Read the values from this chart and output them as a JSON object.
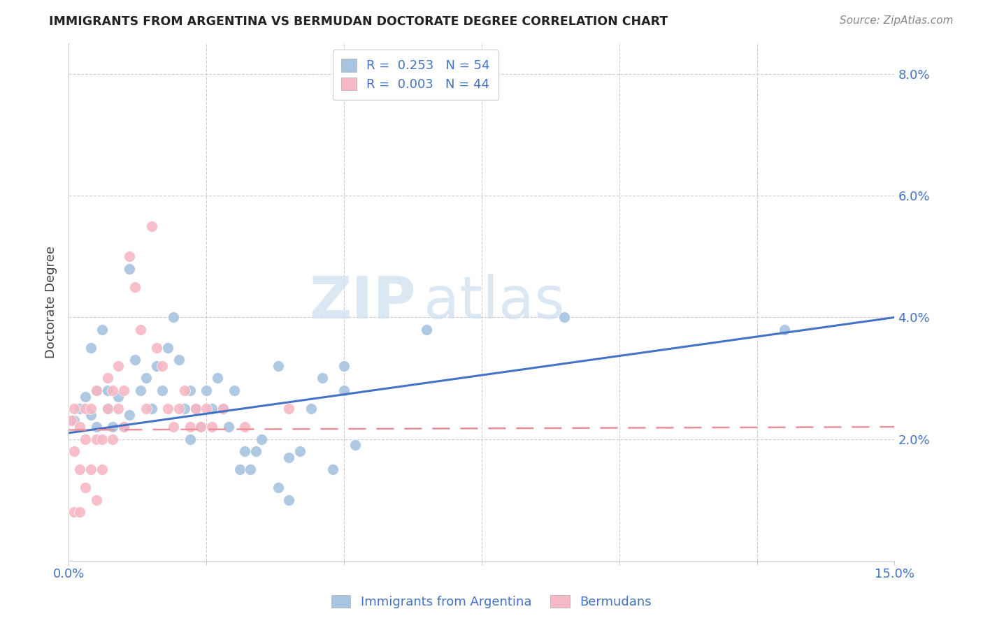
{
  "title": "IMMIGRANTS FROM ARGENTINA VS BERMUDAN DOCTORATE DEGREE CORRELATION CHART",
  "source": "Source: ZipAtlas.com",
  "ylabel": "Doctorate Degree",
  "blue_color": "#a8c4e0",
  "pink_color": "#f5b8c4",
  "blue_line_color": "#4472c4",
  "pink_line_color": "#e8909a",
  "text_color_blue": "#4472c4",
  "watermark_color": "#ccdff0",
  "blue_line_y0": 0.021,
  "blue_line_y1": 0.04,
  "pink_line_y0": 0.0215,
  "pink_line_y1": 0.022,
  "xlim": [
    0,
    0.15
  ],
  "ylim": [
    0,
    0.085
  ],
  "blue_x": [
    0.001,
    0.002,
    0.003,
    0.004,
    0.004,
    0.005,
    0.005,
    0.006,
    0.007,
    0.007,
    0.008,
    0.009,
    0.01,
    0.011,
    0.011,
    0.012,
    0.013,
    0.014,
    0.015,
    0.016,
    0.017,
    0.018,
    0.019,
    0.02,
    0.021,
    0.022,
    0.022,
    0.023,
    0.024,
    0.025,
    0.026,
    0.027,
    0.028,
    0.029,
    0.03,
    0.031,
    0.032,
    0.033,
    0.034,
    0.035,
    0.038,
    0.04,
    0.042,
    0.044,
    0.046,
    0.048,
    0.05,
    0.052,
    0.038,
    0.04,
    0.05,
    0.065,
    0.09,
    0.13
  ],
  "blue_y": [
    0.023,
    0.025,
    0.027,
    0.024,
    0.035,
    0.028,
    0.022,
    0.038,
    0.028,
    0.025,
    0.022,
    0.027,
    0.022,
    0.024,
    0.048,
    0.033,
    0.028,
    0.03,
    0.025,
    0.032,
    0.028,
    0.035,
    0.04,
    0.033,
    0.025,
    0.02,
    0.028,
    0.025,
    0.022,
    0.028,
    0.025,
    0.03,
    0.025,
    0.022,
    0.028,
    0.015,
    0.018,
    0.015,
    0.018,
    0.02,
    0.032,
    0.017,
    0.018,
    0.025,
    0.03,
    0.015,
    0.028,
    0.019,
    0.012,
    0.01,
    0.032,
    0.038,
    0.04,
    0.038
  ],
  "pink_x": [
    0.0005,
    0.001,
    0.001,
    0.001,
    0.002,
    0.002,
    0.002,
    0.003,
    0.003,
    0.003,
    0.004,
    0.004,
    0.005,
    0.005,
    0.005,
    0.006,
    0.006,
    0.007,
    0.007,
    0.008,
    0.008,
    0.009,
    0.009,
    0.01,
    0.01,
    0.011,
    0.012,
    0.013,
    0.014,
    0.015,
    0.016,
    0.017,
    0.018,
    0.019,
    0.02,
    0.021,
    0.022,
    0.023,
    0.024,
    0.025,
    0.026,
    0.028,
    0.032,
    0.04
  ],
  "pink_y": [
    0.023,
    0.025,
    0.018,
    0.008,
    0.022,
    0.015,
    0.008,
    0.02,
    0.012,
    0.025,
    0.015,
    0.025,
    0.028,
    0.02,
    0.01,
    0.02,
    0.015,
    0.03,
    0.025,
    0.028,
    0.02,
    0.032,
    0.025,
    0.028,
    0.022,
    0.05,
    0.045,
    0.038,
    0.025,
    0.055,
    0.035,
    0.032,
    0.025,
    0.022,
    0.025,
    0.028,
    0.022,
    0.025,
    0.022,
    0.025,
    0.022,
    0.025,
    0.022,
    0.025
  ]
}
